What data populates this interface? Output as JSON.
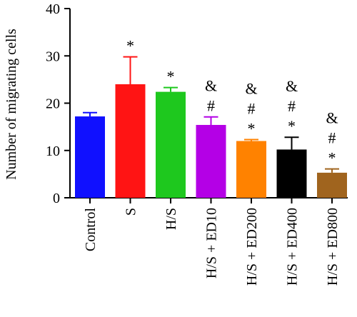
{
  "chart_data": {
    "type": "bar",
    "ylabel": "Number of migrating cells",
    "xlabel": "",
    "ylim": [
      0,
      40
    ],
    "yticks": [
      0,
      10,
      20,
      30,
      40
    ],
    "categories": [
      "Control",
      "S",
      "H/S",
      "H/S + ED10",
      "H/S + ED200",
      "H/S + ED400",
      "H/S + ED800"
    ],
    "values": [
      17.2,
      24.0,
      22.4,
      15.4,
      12.0,
      10.2,
      5.3
    ],
    "errors": [
      0.8,
      5.8,
      0.9,
      1.7,
      0.3,
      2.6,
      0.8
    ],
    "colors": [
      "#1010ff",
      "#ff1414",
      "#1ec81e",
      "#b400e6",
      "#ff8200",
      "#000000",
      "#a0641e"
    ],
    "annotations": [
      [],
      [
        "*"
      ],
      [
        "*"
      ],
      [
        "&",
        "#"
      ],
      [
        "&",
        "#",
        "*"
      ],
      [
        "&",
        "#",
        "*"
      ],
      [
        "&",
        "#",
        "*"
      ]
    ]
  }
}
